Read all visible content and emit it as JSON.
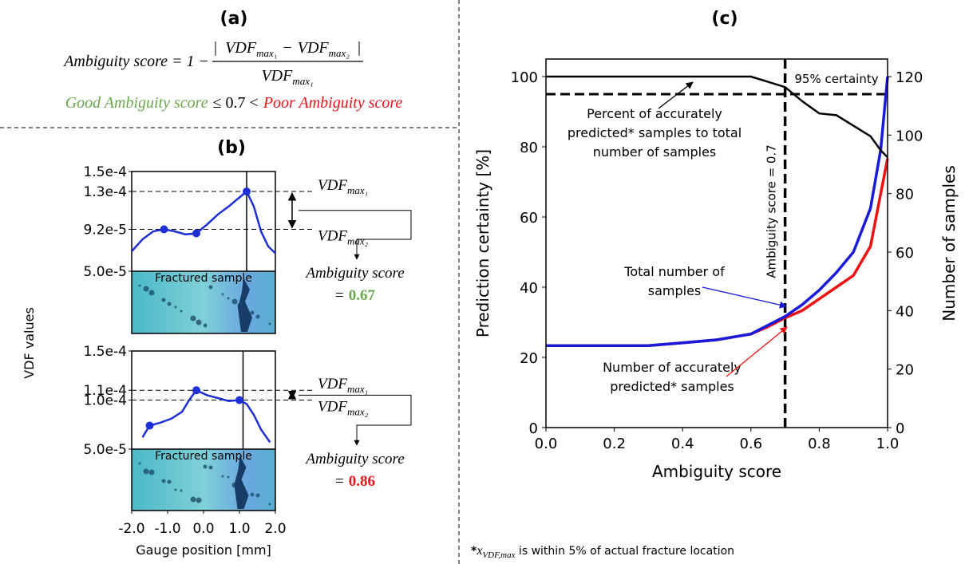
{
  "panel_a": {
    "label": "(a)",
    "eq_lhs": "Ambiguity score = 1 −",
    "vdf": "VDF",
    "sub1": "max₁",
    "sub2": "max₂",
    "minus": "−",
    "good": "Good Ambiguity score",
    "middle": "≤ 0.7 <",
    "poor": "Poor Ambiguity score"
  },
  "chart_data": [
    {
      "type": "line",
      "title": "(b)",
      "y_label": "VDF values",
      "xlim": [
        -2,
        2
      ],
      "ylim": [
        5e-05,
        0.00015
      ],
      "yticks": [
        {
          "value": 0.00015,
          "label": "1.5e-4"
        },
        {
          "value": 0.00013,
          "label": "1.3e-4"
        },
        {
          "value": 9.2e-05,
          "label": "9.2e-5"
        },
        {
          "value": 5e-05,
          "label": "5.0e-5"
        }
      ],
      "series": [
        {
          "color": "#1f2fd6",
          "x": [
            -2,
            -1.7,
            -1.4,
            -1.1,
            -0.8,
            -0.5,
            -0.2,
            0.1,
            0.4,
            0.7,
            1.0,
            1.2,
            1.4,
            1.6,
            1.8,
            2.0
          ],
          "values": [
            7e-05,
            8.2e-05,
            9e-05,
            9.2e-05,
            9e-05,
            8.7e-05,
            8.8e-05,
            9.7e-05,
            0.000107,
            0.000115,
            0.000124,
            0.00013,
            0.000115,
            9e-05,
            7.5e-05,
            6.8e-05
          ]
        }
      ],
      "markers": {
        "x": [
          -1.1,
          -0.2,
          1.2
        ],
        "values": [
          9.2e-05,
          8.8e-05,
          0.00013
        ]
      },
      "fracture_x": 1.2,
      "image_label": "Fractured sample",
      "annotation": {
        "vdf": "VDF",
        "sub1": "max₁",
        "sub2": "max₂",
        "score_label": "Ambiguity score",
        "equals": "=",
        "score": 0.67,
        "score_color": "#6aa84f"
      }
    },
    {
      "type": "line",
      "x_label": "Gauge position [mm]",
      "xlim": [
        -2,
        2
      ],
      "ylim": [
        5e-05,
        0.00015
      ],
      "xticks": [
        {
          "value": -2,
          "label": "-2.0"
        },
        {
          "value": -1,
          "label": "-1.0"
        },
        {
          "value": 0,
          "label": "0.0"
        },
        {
          "value": 1,
          "label": "1.0"
        },
        {
          "value": 2,
          "label": "2.0"
        }
      ],
      "yticks": [
        {
          "value": 0.00015,
          "label": "1.5e-4"
        },
        {
          "value": 0.00011,
          "label": "1.1e-4"
        },
        {
          "value": 0.0001,
          "label": "1.0e-4"
        },
        {
          "value": 5e-05,
          "label": "5.0e-5"
        }
      ],
      "series": [
        {
          "color": "#1f2fd6",
          "x": [
            -1.7,
            -1.5,
            -1.2,
            -0.9,
            -0.6,
            -0.4,
            -0.2,
            0.1,
            0.4,
            0.7,
            1.0,
            1.2,
            1.4,
            1.6,
            1.85
          ],
          "values": [
            6.2e-05,
            7.4e-05,
            7.7e-05,
            8.1e-05,
            8.8e-05,
            0.0001,
            0.00011,
            0.000105,
            0.000102,
            9.9e-05,
            0.0001,
            9.6e-05,
            8.5e-05,
            7e-05,
            5.7e-05
          ]
        }
      ],
      "markers": {
        "x": [
          -1.5,
          -0.2,
          1.0
        ],
        "values": [
          7.4e-05,
          0.00011,
          0.0001
        ]
      },
      "fracture_x": 1.1,
      "image_label": "Fractured sample",
      "annotation": {
        "vdf": "VDF",
        "sub1": "max₁",
        "sub2": "max₂",
        "score_label": "Ambiguity score",
        "equals": "=",
        "score": 0.86,
        "score_color": "#e8141b"
      }
    },
    {
      "type": "line",
      "title": "(c)",
      "x_label": "Ambiguity score",
      "y_label": "Prediction certainty [%]",
      "y2_label": "Number of samples",
      "xlim": [
        0,
        1
      ],
      "xticks": [
        {
          "value": 0,
          "label": "0.0"
        },
        {
          "value": 0.2,
          "label": "0.2"
        },
        {
          "value": 0.4,
          "label": "0.4"
        },
        {
          "value": 0.6,
          "label": "0.6"
        },
        {
          "value": 0.8,
          "label": "0.8"
        },
        {
          "value": 1,
          "label": "1.0"
        }
      ],
      "ylim": [
        0,
        105
      ],
      "yticks": [
        0,
        20,
        40,
        60,
        80,
        100
      ],
      "y2lim": [
        0,
        126
      ],
      "y2ticks": [
        0,
        20,
        40,
        60,
        80,
        100,
        120
      ],
      "x": [
        0,
        0.1,
        0.2,
        0.3,
        0.4,
        0.5,
        0.6,
        0.65,
        0.7,
        0.75,
        0.8,
        0.85,
        0.9,
        0.95,
        0.98,
        1.0
      ],
      "series": [
        {
          "color": "#000000",
          "values": [
            100,
            100,
            100,
            100,
            100,
            100,
            100,
            98.5,
            97,
            93,
            89.5,
            89,
            86,
            83,
            79,
            77
          ]
        },
        {
          "color": "#1a1adb",
          "axis": "y2",
          "values": [
            28,
            28,
            28,
            28,
            29,
            30,
            32,
            35,
            38,
            42,
            47,
            53,
            60,
            75,
            95,
            120
          ]
        },
        {
          "color": "#ee1111",
          "axis": "y2",
          "values": [
            28,
            28,
            28,
            28,
            29,
            30,
            32,
            34.5,
            37.5,
            40,
            44,
            48,
            52,
            62,
            80,
            92
          ]
        }
      ],
      "certainty_line": {
        "value": 95,
        "label": "95% certainty"
      },
      "threshold": {
        "value": 0.7,
        "label": "Ambiguity score = 0.7"
      },
      "annotations": [
        {
          "lines": [
            "Percent of accurately",
            "predicted* samples to total",
            "number of samples"
          ]
        },
        {
          "lines": [
            "Total number of",
            "samples"
          ]
        },
        {
          "lines": [
            "Number of accurately",
            "predicted* samples"
          ]
        }
      ]
    }
  ],
  "footnote": {
    "star": "*",
    "var": "x",
    "sub": "VDF,max",
    "text": " is within 5% of actual fracture location"
  }
}
